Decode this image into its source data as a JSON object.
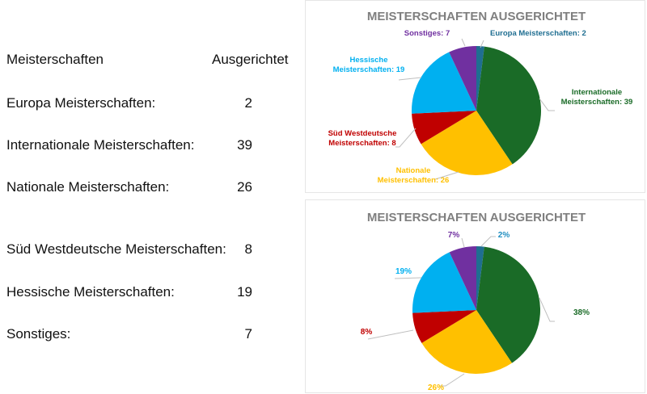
{
  "table": {
    "header": {
      "name": "Meisterschaften",
      "value": "Ausgerichtet"
    },
    "rows": [
      {
        "label": "Europa Meisterschaften:",
        "value": "2"
      },
      {
        "label": "Internationale Meisterschaften:",
        "value": "39"
      },
      {
        "label": "Nationale Meisterschaften:",
        "value": "26"
      },
      {
        "label": "Süd Westdeutsche Meisterschaften:",
        "value": "8"
      },
      {
        "label": "Hessische Meisterschaften:",
        "value": "19"
      },
      {
        "label": "Sonstiges:",
        "value": "7"
      }
    ]
  },
  "chart_data": [
    {
      "type": "pie",
      "title": "MEISTERSCHAFTEN AUSGERICHTET",
      "label_mode": "category-value",
      "categories": [
        "Europa Meisterschaften",
        "Internationale Meisterschaften",
        "Nationale Meisterschaften",
        "Süd Westdeutsche Meisterschaften",
        "Hessische Meisterschaften",
        "Sonstiges"
      ],
      "values": [
        2,
        39,
        26,
        8,
        19,
        7
      ],
      "colors": [
        "#1f6e91",
        "#1a6b27",
        "#ffc000",
        "#c00000",
        "#00b0f0",
        "#7030a0"
      ],
      "labels": [
        [
          "Europa Meisterschaften: 2"
        ],
        [
          "Internationale",
          "Meisterschaften: 39"
        ],
        [
          "Nationale",
          "Meisterschaften: 26"
        ],
        [
          "Süd Westdeutsche",
          "Meisterschaften: 8"
        ],
        [
          "Hessische",
          "Meisterschaften:  19"
        ],
        [
          "Sonstiges: 7"
        ]
      ],
      "label_colors": [
        "#1f6e91",
        "#1a6b27",
        "#ffc000",
        "#c00000",
        "#00b0f0",
        "#7030a0"
      ]
    },
    {
      "type": "pie",
      "title": "MEISTERSCHAFTEN AUSGERICHTET",
      "label_mode": "percent",
      "categories": [
        "Europa Meisterschaften",
        "Internationale Meisterschaften",
        "Nationale Meisterschaften",
        "Süd Westdeutsche Meisterschaften",
        "Hessische Meisterschaften",
        "Sonstiges"
      ],
      "values": [
        2,
        39,
        26,
        8,
        19,
        7
      ],
      "colors": [
        "#1f6e91",
        "#1a6b27",
        "#ffc000",
        "#c00000",
        "#00b0f0",
        "#7030a0"
      ],
      "labels": [
        [
          "2%"
        ],
        [
          "38%"
        ],
        [
          "26%"
        ],
        [
          "8%"
        ],
        [
          "19%"
        ],
        [
          "7%"
        ]
      ],
      "label_colors": [
        "#1f8ec0",
        "#1a6b27",
        "#ffc000",
        "#c00000",
        "#00b0f0",
        "#7030a0"
      ]
    }
  ]
}
